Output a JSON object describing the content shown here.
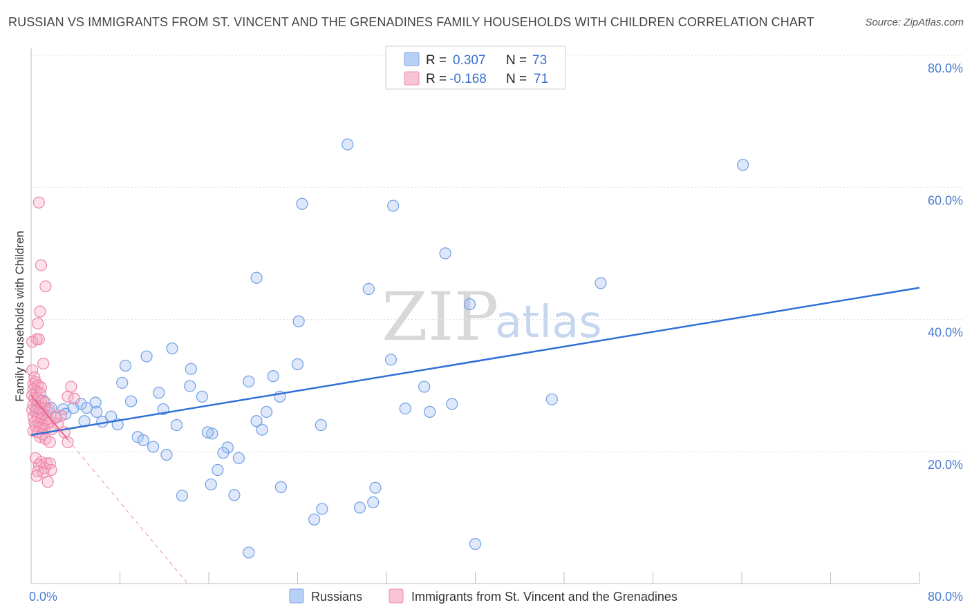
{
  "title": "RUSSIAN VS IMMIGRANTS FROM ST. VINCENT AND THE GRENADINES FAMILY HOUSEHOLDS WITH CHILDREN CORRELATION CHART",
  "source": "Source: ZipAtlas.com",
  "watermark": {
    "zip": "ZIP",
    "atlas": "atlas"
  },
  "colors": {
    "blue": "#6f9fe3",
    "blue_fill": "rgba(160,190,240,0.35)",
    "blue_line": "#2f6fd6",
    "pink": "#ec85a7",
    "pink_fill": "rgba(245,170,195,0.35)",
    "pink_line": "#e8608e",
    "grid": "#dddddd",
    "tick_text": "#4a7bd0"
  },
  "legend": {
    "rows": [
      {
        "r_label": "R =",
        "r_value": "0.307",
        "n_label": "N =",
        "n_value": "73"
      },
      {
        "r_label": "R =",
        "r_value": "-0.168",
        "n_label": "N =",
        "n_value": "71"
      }
    ]
  },
  "chart_data": {
    "type": "scatter",
    "title": "RUSSIAN VS IMMIGRANTS FROM ST. VINCENT AND THE GRENADINES FAMILY HOUSEHOLDS WITH CHILDREN CORRELATION CHART",
    "xlabel": "",
    "ylabel": "Family Households with Children",
    "xlim": [
      0,
      80
    ],
    "ylim": [
      0,
      80
    ],
    "x_tick_labels": [
      "0.0%",
      "80.0%"
    ],
    "y_tick_labels": [
      "20.0%",
      "40.0%",
      "60.0%",
      "80.0%"
    ],
    "y_ticks": [
      20,
      40,
      60,
      80
    ],
    "grid": true,
    "legend_position": "top-center",
    "series": [
      {
        "name": "Russians",
        "r": 0.307,
        "n": 73,
        "trend": {
          "x": [
            0,
            80
          ],
          "y": [
            22.5,
            44.8
          ]
        },
        "points": [
          [
            28.5,
            66.5
          ],
          [
            64.1,
            63.4
          ],
          [
            24.4,
            57.5
          ],
          [
            32.6,
            57.2
          ],
          [
            37.3,
            50.0
          ],
          [
            20.3,
            46.3
          ],
          [
            30.4,
            44.6
          ],
          [
            51.3,
            45.5
          ],
          [
            39.5,
            42.3
          ],
          [
            24.1,
            39.7
          ],
          [
            12.7,
            35.6
          ],
          [
            10.4,
            34.4
          ],
          [
            8.5,
            33.0
          ],
          [
            14.4,
            32.5
          ],
          [
            32.4,
            33.9
          ],
          [
            24.0,
            33.2
          ],
          [
            21.8,
            31.4
          ],
          [
            8.2,
            30.4
          ],
          [
            19.6,
            30.6
          ],
          [
            35.4,
            29.8
          ],
          [
            14.3,
            29.9
          ],
          [
            11.5,
            28.9
          ],
          [
            22.4,
            28.3
          ],
          [
            15.4,
            28.3
          ],
          [
            9.0,
            27.6
          ],
          [
            5.8,
            27.4
          ],
          [
            46.9,
            27.9
          ],
          [
            37.9,
            27.2
          ],
          [
            4.5,
            27.2
          ],
          [
            3.8,
            26.6
          ],
          [
            5.0,
            26.6
          ],
          [
            1.8,
            26.6
          ],
          [
            2.9,
            26.4
          ],
          [
            11.9,
            26.4
          ],
          [
            5.9,
            26.0
          ],
          [
            1.5,
            26.0
          ],
          [
            21.2,
            26.0
          ],
          [
            33.7,
            26.5
          ],
          [
            35.9,
            26.0
          ],
          [
            3.1,
            25.7
          ],
          [
            7.2,
            25.3
          ],
          [
            2.2,
            25.1
          ],
          [
            6.4,
            24.5
          ],
          [
            7.8,
            24.1
          ],
          [
            20.3,
            24.6
          ],
          [
            13.1,
            24.0
          ],
          [
            26.1,
            24.0
          ],
          [
            4.8,
            24.6
          ],
          [
            20.8,
            23.3
          ],
          [
            16.3,
            22.7
          ],
          [
            15.9,
            22.9
          ],
          [
            9.6,
            22.2
          ],
          [
            10.1,
            21.7
          ],
          [
            11.0,
            20.7
          ],
          [
            17.7,
            20.6
          ],
          [
            17.3,
            19.8
          ],
          [
            12.2,
            19.5
          ],
          [
            18.7,
            19.0
          ],
          [
            16.8,
            17.2
          ],
          [
            16.2,
            15.0
          ],
          [
            22.5,
            14.6
          ],
          [
            13.6,
            13.3
          ],
          [
            18.3,
            13.4
          ],
          [
            31.0,
            14.5
          ],
          [
            30.8,
            12.3
          ],
          [
            26.2,
            11.3
          ],
          [
            29.6,
            11.5
          ],
          [
            25.5,
            9.7
          ],
          [
            40.0,
            6.0
          ],
          [
            19.6,
            4.7
          ],
          [
            1.1,
            27.7
          ],
          [
            0.5,
            26.4
          ],
          [
            1.0,
            25.7
          ]
        ]
      },
      {
        "name": "Immigrants from St. Vincent and the Grenadines",
        "r": -0.168,
        "n": 71,
        "trend": {
          "x": [
            0,
            14.1
          ],
          "y": [
            28.5,
            0
          ],
          "solid_to_x": 3.3
        },
        "points": [
          [
            0.7,
            57.7
          ],
          [
            0.9,
            48.2
          ],
          [
            1.3,
            45.0
          ],
          [
            0.8,
            41.2
          ],
          [
            0.6,
            39.4
          ],
          [
            0.5,
            37.0
          ],
          [
            0.7,
            37.0
          ],
          [
            0.1,
            36.6
          ],
          [
            1.1,
            33.3
          ],
          [
            0.1,
            32.3
          ],
          [
            0.3,
            31.2
          ],
          [
            0.2,
            30.2
          ],
          [
            0.4,
            30.5
          ],
          [
            0.6,
            30.0
          ],
          [
            0.9,
            29.7
          ],
          [
            0.2,
            29.4
          ],
          [
            0.5,
            29.1
          ],
          [
            0.8,
            28.8
          ],
          [
            0.1,
            28.5
          ],
          [
            0.3,
            28.1
          ],
          [
            0.6,
            27.9
          ],
          [
            0.9,
            27.6
          ],
          [
            1.3,
            27.4
          ],
          [
            0.2,
            27.1
          ],
          [
            0.5,
            26.9
          ],
          [
            0.8,
            26.6
          ],
          [
            1.2,
            26.6
          ],
          [
            1.6,
            26.4
          ],
          [
            0.1,
            26.3
          ],
          [
            0.4,
            26.1
          ],
          [
            0.7,
            25.9
          ],
          [
            1.0,
            25.7
          ],
          [
            1.4,
            25.4
          ],
          [
            0.2,
            25.2
          ],
          [
            0.6,
            25.0
          ],
          [
            0.9,
            24.9
          ],
          [
            1.3,
            24.7
          ],
          [
            1.7,
            24.5
          ],
          [
            0.3,
            24.4
          ],
          [
            0.7,
            24.2
          ],
          [
            1.1,
            24.0
          ],
          [
            1.5,
            24.2
          ],
          [
            2.4,
            24.2
          ],
          [
            0.4,
            23.8
          ],
          [
            0.8,
            23.6
          ],
          [
            1.2,
            23.4
          ],
          [
            1.9,
            23.4
          ],
          [
            0.2,
            23.1
          ],
          [
            0.6,
            22.9
          ],
          [
            1.0,
            22.6
          ],
          [
            0.8,
            22.2
          ],
          [
            1.3,
            21.9
          ],
          [
            1.7,
            21.4
          ],
          [
            3.6,
            29.8
          ],
          [
            3.3,
            28.3
          ],
          [
            3.9,
            28.0
          ],
          [
            2.7,
            25.4
          ],
          [
            2.2,
            25.2
          ],
          [
            3.0,
            22.9
          ],
          [
            3.3,
            21.4
          ],
          [
            0.9,
            18.4
          ],
          [
            0.7,
            18.0
          ],
          [
            1.4,
            18.2
          ],
          [
            1.7,
            18.2
          ],
          [
            1.2,
            17.5
          ],
          [
            1.8,
            17.2
          ],
          [
            0.6,
            17.0
          ],
          [
            1.1,
            16.8
          ],
          [
            0.5,
            16.3
          ],
          [
            1.5,
            15.4
          ],
          [
            0.4,
            19.0
          ]
        ]
      }
    ]
  }
}
